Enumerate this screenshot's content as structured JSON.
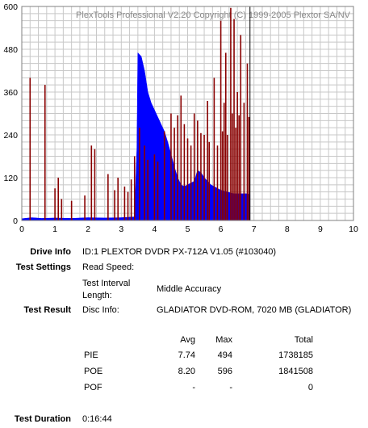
{
  "watermark": "PlexTools Professional V2.20 Copyright (C) 1999-2005 Plextor SA/NV",
  "colors": {
    "pie": "#0000ff",
    "poe": "#880000",
    "grid": "#c8c8c8",
    "cursor": "#000000",
    "background": "#ffffff"
  },
  "chart_data": {
    "type": "area",
    "x_ticks": [
      "0",
      "1",
      "2",
      "3",
      "4",
      "5",
      "6",
      "7",
      "8",
      "9",
      "10"
    ],
    "y_ticks": [
      "0",
      "120",
      "240",
      "360",
      "480",
      "600"
    ],
    "xlim": [
      0,
      10
    ],
    "ylim": [
      0,
      600
    ],
    "grid": true,
    "cursor_x": 6.88,
    "series": [
      {
        "name": "PIE",
        "color": "#0000ff",
        "points": [
          [
            0,
            5
          ],
          [
            0.3,
            8
          ],
          [
            0.6,
            6
          ],
          [
            1.0,
            7
          ],
          [
            1.5,
            6
          ],
          [
            2.0,
            8
          ],
          [
            2.5,
            7
          ],
          [
            3.0,
            8
          ],
          [
            3.4,
            10
          ],
          [
            3.47,
            200
          ],
          [
            3.5,
            470
          ],
          [
            3.6,
            460
          ],
          [
            3.7,
            420
          ],
          [
            3.8,
            360
          ],
          [
            3.9,
            330
          ],
          [
            4.0,
            310
          ],
          [
            4.1,
            290
          ],
          [
            4.2,
            270
          ],
          [
            4.3,
            250
          ],
          [
            4.4,
            220
          ],
          [
            4.5,
            185
          ],
          [
            4.6,
            150
          ],
          [
            4.7,
            120
          ],
          [
            4.8,
            100
          ],
          [
            4.9,
            95
          ],
          [
            5.0,
            100
          ],
          [
            5.1,
            105
          ],
          [
            5.2,
            110
          ],
          [
            5.3,
            140
          ],
          [
            5.4,
            135
          ],
          [
            5.5,
            120
          ],
          [
            5.6,
            110
          ],
          [
            5.7,
            100
          ],
          [
            5.8,
            95
          ],
          [
            5.9,
            90
          ],
          [
            6.0,
            85
          ],
          [
            6.2,
            80
          ],
          [
            6.4,
            75
          ],
          [
            6.6,
            75
          ],
          [
            6.8,
            75
          ],
          [
            6.88,
            72
          ]
        ]
      },
      {
        "name": "POE",
        "color": "#880000",
        "spikes": [
          [
            0.25,
            400
          ],
          [
            0.7,
            380
          ],
          [
            1.0,
            90
          ],
          [
            1.1,
            120
          ],
          [
            1.2,
            60
          ],
          [
            1.5,
            55
          ],
          [
            1.9,
            70
          ],
          [
            2.1,
            210
          ],
          [
            2.2,
            200
          ],
          [
            2.6,
            130
          ],
          [
            2.8,
            85
          ],
          [
            2.9,
            120
          ],
          [
            3.1,
            95
          ],
          [
            3.2,
            80
          ],
          [
            3.3,
            115
          ],
          [
            3.4,
            180
          ],
          [
            3.55,
            260
          ],
          [
            3.7,
            210
          ],
          [
            3.8,
            170
          ],
          [
            4.0,
            185
          ],
          [
            4.1,
            165
          ],
          [
            4.3,
            250
          ],
          [
            4.5,
            300
          ],
          [
            4.6,
            260
          ],
          [
            4.7,
            295
          ],
          [
            4.8,
            350
          ],
          [
            4.9,
            270
          ],
          [
            5.0,
            230
          ],
          [
            5.1,
            210
          ],
          [
            5.2,
            300
          ],
          [
            5.3,
            280
          ],
          [
            5.4,
            245
          ],
          [
            5.5,
            240
          ],
          [
            5.6,
            335
          ],
          [
            5.65,
            220
          ],
          [
            5.8,
            400
          ],
          [
            5.9,
            210
          ],
          [
            6.0,
            560
          ],
          [
            6.05,
            250
          ],
          [
            6.1,
            330
          ],
          [
            6.15,
            470
          ],
          [
            6.2,
            240
          ],
          [
            6.3,
            596
          ],
          [
            6.35,
            300
          ],
          [
            6.4,
            565
          ],
          [
            6.45,
            260
          ],
          [
            6.5,
            360
          ],
          [
            6.55,
            295
          ],
          [
            6.6,
            520
          ],
          [
            6.7,
            330
          ],
          [
            6.8,
            440
          ],
          [
            6.85,
            290
          ]
        ]
      }
    ]
  },
  "info": {
    "drive_info_label": "Drive Info",
    "drive_info_value": "ID:1 PLEXTOR DVDR PX-712A V1.05 (#103040)",
    "test_settings_label": "Test Settings",
    "read_speed_label": "Read Speed:",
    "interval_label_1": "Test Interval",
    "interval_label_2": "Length:",
    "interval_value": "Middle Accuracy",
    "test_result_label": "Test Result",
    "disc_info_label": "Disc Info:",
    "disc_info_value": "GLADIATOR DVD-ROM, 7020 MB (GLADIATOR)",
    "table_header": {
      "avg": "Avg",
      "max": "Max",
      "total": "Total"
    },
    "rows": [
      {
        "name": "PIE",
        "avg": "7.74",
        "max": "494",
        "total": "1738185"
      },
      {
        "name": "POE",
        "avg": "8.20",
        "max": "596",
        "total": "1841508"
      },
      {
        "name": "POF",
        "avg": "-",
        "max": "-",
        "total": "0"
      }
    ],
    "test_duration_label": "Test Duration",
    "test_duration_value": "0:16:44"
  }
}
